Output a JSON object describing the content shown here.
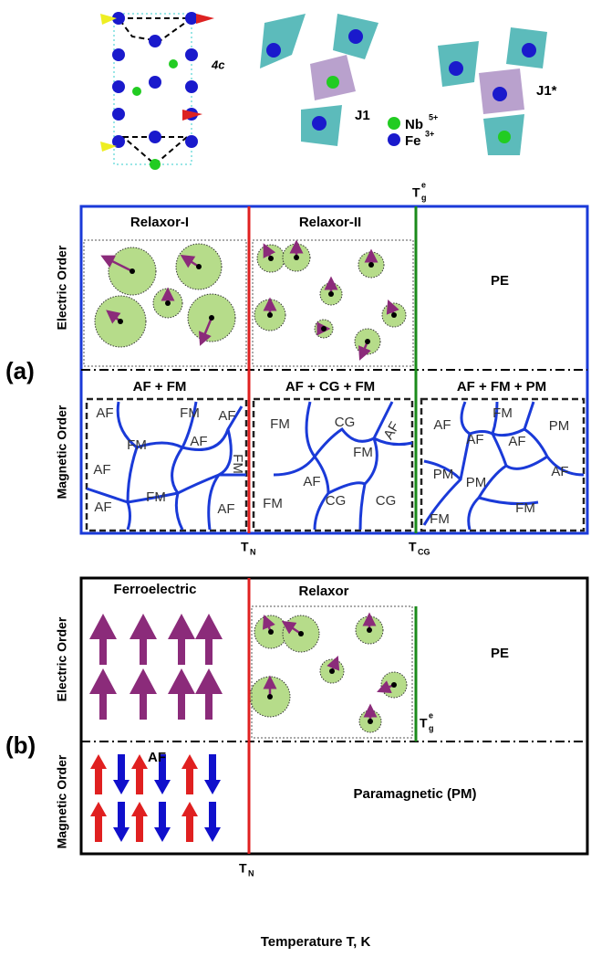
{
  "structure": {
    "site": "4c",
    "j1": "J1",
    "nb": "Nb",
    "nb_charge": "5+",
    "fe": "Fe",
    "fe_charge": "3+",
    "j1_star": "J1*"
  },
  "panel_a": {
    "label": "(a)",
    "tg": "T",
    "tg_sub": "g",
    "tg_sup": "e",
    "electric_axis": "Electric Order",
    "magnetic_axis": "Magnetic Order",
    "relaxor1": "Relaxor-I",
    "relaxor2": "Relaxor-II",
    "pe": "PE",
    "mag1": {
      "title": "AF + FM",
      "domains": [
        "AF",
        "FM",
        "AF",
        "FM",
        "AF",
        "AF",
        "FM",
        "AF",
        "FM",
        "AF"
      ]
    },
    "mag2": {
      "title": "AF + CG + FM",
      "domains": [
        "FM",
        "CG",
        "AF",
        "AF",
        "FM",
        "FM",
        "CG",
        "CG"
      ]
    },
    "mag3": {
      "title": "AF + FM + PM",
      "domains": [
        "AF",
        "FM",
        "AF",
        "AF",
        "PM",
        "PM",
        "AF",
        "PM",
        "FM",
        "FM"
      ]
    },
    "tn": "T",
    "tn_sub": "N",
    "tcg": "T",
    "tcg_sub": "CG"
  },
  "panel_b": {
    "label": "(b)",
    "electric_axis": "Electric Order",
    "magnetic_axis": "Magnetic Order",
    "ferro": "Ferroelectric",
    "relaxor": "Relaxor",
    "pe": "PE",
    "af": "AF",
    "pm": "Paramagnetic (PM)",
    "tg": "T",
    "tg_sub": "g",
    "tg_sup": "e",
    "tn": "T",
    "tn_sub": "N",
    "x_axis": "Temperature T, K"
  }
}
